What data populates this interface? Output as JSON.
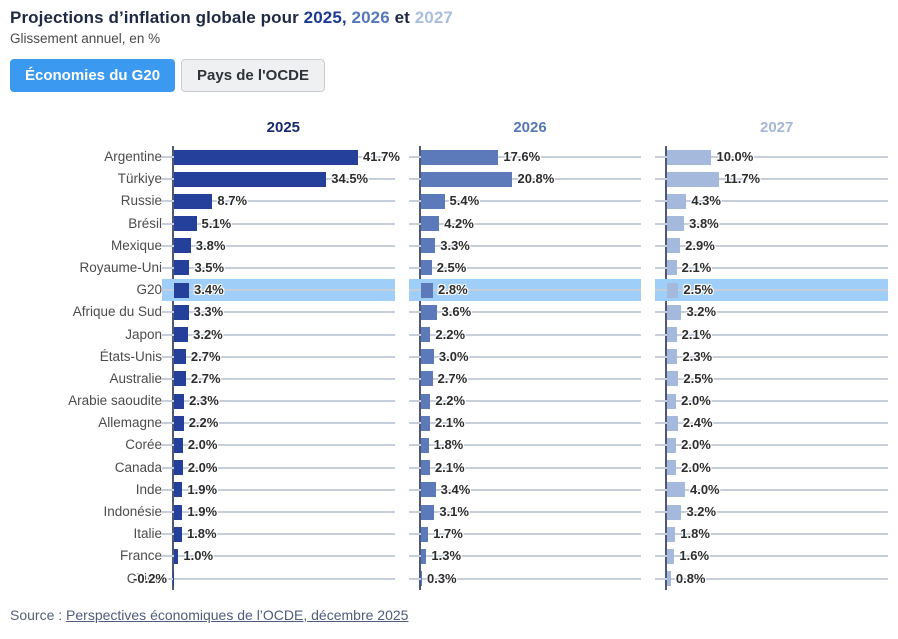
{
  "title": {
    "prefix": "Projections d’inflation globale pour",
    "year1": "2025,",
    "year2": "2026",
    "conj": "et",
    "year3": "2027"
  },
  "subtitle": "Glissement annuel, en %",
  "toggle": {
    "buttons": [
      {
        "label": "Économies du G20",
        "active": true
      },
      {
        "label": "Pays de l'OCDE",
        "active": false
      }
    ]
  },
  "source": {
    "prefix": "Source :",
    "link_text": "Perspectives économiques de l’OCDE, décembre 2025"
  },
  "colors": {
    "title_base": "#1e2a44",
    "title_year1": "#1b3a94",
    "title_year2": "#5577bb",
    "title_year3": "#a9bede",
    "button_active_bg": "#3b99f0",
    "button_active_text": "#ffffff",
    "header_colors": [
      "#17286f",
      "#5577b5",
      "#a3b7d9"
    ],
    "bar_colors": [
      "#24409a",
      "#5c7ab9",
      "#a4b9db"
    ],
    "highlight_band": "#9fcff8",
    "grid_line": "#c5ceda",
    "axis_line": "#4d5975"
  },
  "chart_data": {
    "type": "bar",
    "orientation": "horizontal",
    "layout": "three_side_by_side_panels_shared_category_axis",
    "unit": "%",
    "value_suffix": "%",
    "xlim": [
      0,
      50
    ],
    "grid": true,
    "legend": "none",
    "value_labels": true,
    "highlight_category": "G20",
    "categories": [
      "Argentine",
      "Türkiye",
      "Russie",
      "Brésil",
      "Mexique",
      "Royaume-Uni",
      "G20",
      "Afrique du Sud",
      "Japon",
      "États-Unis",
      "Australie",
      "Arabie saoudite",
      "Allemagne",
      "Corée",
      "Canada",
      "Inde",
      "Indonésie",
      "Italie",
      "France",
      "Chine"
    ],
    "series": [
      {
        "name": "2025",
        "values": [
          41.7,
          34.5,
          8.7,
          5.1,
          3.8,
          3.5,
          3.4,
          3.3,
          3.2,
          2.7,
          2.7,
          2.3,
          2.2,
          2.0,
          2.0,
          1.9,
          1.9,
          1.8,
          1.0,
          -0.2
        ]
      },
      {
        "name": "2026",
        "values": [
          17.6,
          20.8,
          5.4,
          4.2,
          3.3,
          2.5,
          2.8,
          3.6,
          2.2,
          3.0,
          2.7,
          2.2,
          2.1,
          1.8,
          2.1,
          3.4,
          3.1,
          1.7,
          1.3,
          0.3
        ]
      },
      {
        "name": "2027",
        "values": [
          10.0,
          11.7,
          4.3,
          3.8,
          2.9,
          2.1,
          2.5,
          3.2,
          2.1,
          2.3,
          2.5,
          2.0,
          2.4,
          2.0,
          2.0,
          4.0,
          3.2,
          1.8,
          1.6,
          0.8
        ]
      }
    ]
  }
}
